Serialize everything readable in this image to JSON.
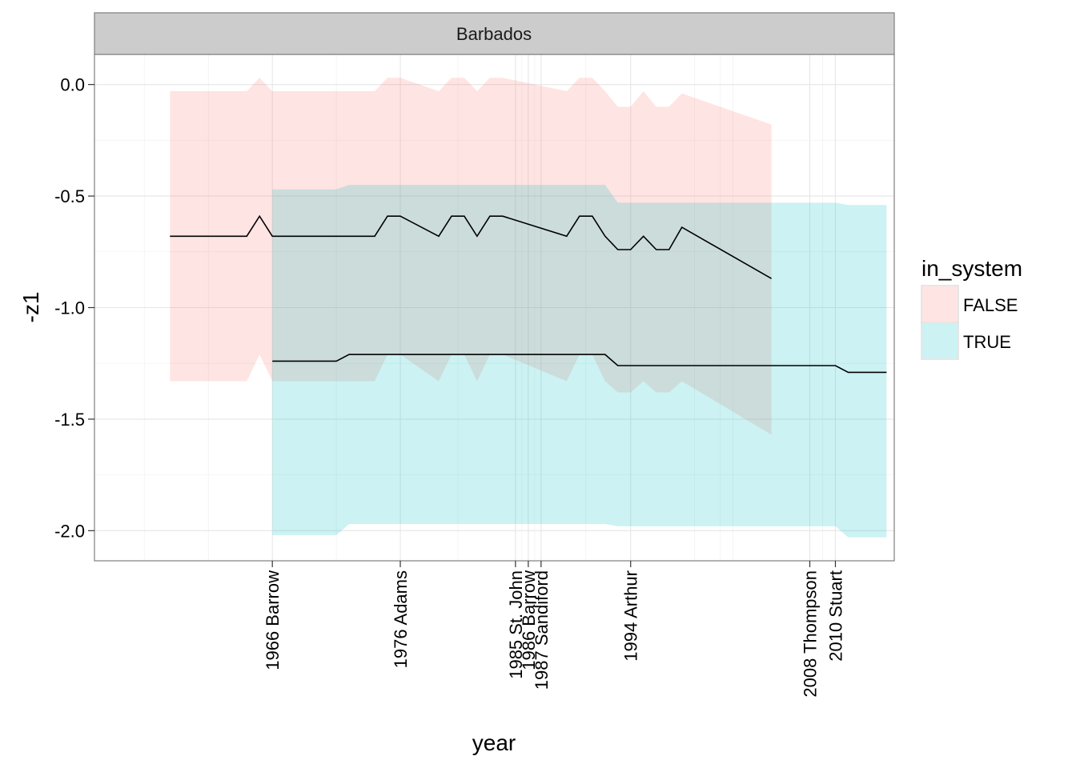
{
  "chart_data": {
    "type": "area",
    "facet": "Barbados",
    "xlabel": "year",
    "ylabel": "-z1",
    "xlim": [
      1952.1,
      2014.6
    ],
    "ylim": [
      -2.135,
      0.135
    ],
    "y_ticks": [
      0.0,
      -0.5,
      -1.0,
      -1.5,
      -2.0
    ],
    "y_tick_labels": [
      "0.0",
      "-0.5",
      "-1.0",
      "-1.5",
      "-2.0"
    ],
    "x_ticks": [
      {
        "year": 1966,
        "label": "1966 Barrow"
      },
      {
        "year": 1976,
        "label": "1976 Adams"
      },
      {
        "year": 1985,
        "label": "1985 St. John"
      },
      {
        "year": 1986,
        "label": "1986 Barrow"
      },
      {
        "year": 1987,
        "label": "1987 Sandiford"
      },
      {
        "year": 1994,
        "label": "1994 Arthur"
      },
      {
        "year": 2008,
        "label": "2008 Thompson"
      },
      {
        "year": 2010,
        "label": "2010 Stuart"
      }
    ],
    "grid": true,
    "legend": {
      "title": "in_system",
      "placement": "right",
      "entries": [
        {
          "label": "FALSE",
          "color": "#F8766D"
        },
        {
          "label": "TRUE",
          "color": "#00BFC4"
        }
      ]
    },
    "series": [
      {
        "label": "FALSE",
        "fill": "#F8766D",
        "x": [
          1958,
          1964,
          1965,
          1966,
          1968,
          1969,
          1970,
          1973,
          1974,
          1975,
          1977,
          1978,
          1979,
          1980,
          1981,
          1982,
          1983,
          1984,
          1985,
          1986,
          1987,
          1988,
          1989,
          1990,
          1991,
          1995,
          1996,
          1997,
          1998,
          1999,
          2000,
          2001,
          2002,
          2003,
          2004,
          2005
        ],
        "y": [
          -0.68,
          -0.68,
          -0.68,
          -0.68,
          -0.68,
          -0.68,
          -0.68,
          -0.68,
          -0.68,
          -0.68,
          -0.68,
          -0.68,
          -0.68,
          -0.68,
          -0.68,
          -0.68,
          -0.68,
          -0.68,
          -0.68,
          -0.68,
          -0.68,
          -0.68,
          -0.68,
          -0.68,
          -0.68,
          -0.68,
          -0.68,
          -0.68,
          -0.68,
          -0.68,
          -0.68,
          -0.68,
          -0.68,
          -0.68,
          -0.68,
          -0.68
        ],
        "ymin": [
          -1.33,
          -1.33,
          -1.33,
          -1.33,
          -1.33,
          -1.33,
          -1.33,
          -1.33,
          -1.33,
          -1.33,
          -1.33,
          -1.33,
          -1.33,
          -1.33,
          -1.33,
          -1.33,
          -1.33,
          -1.33,
          -1.33,
          -1.33,
          -1.33,
          -1.33,
          -1.33,
          -1.33,
          -1.33,
          -1.33,
          -1.33,
          -1.33,
          -1.33,
          -1.33,
          -1.33,
          -1.33,
          -1.33,
          -1.33,
          -1.33,
          -1.33
        ],
        "ymax": [
          -0.03,
          -0.03,
          -0.03,
          -0.03,
          -0.03,
          -0.03,
          -0.03,
          -0.03,
          -0.03,
          -0.03,
          -0.03,
          -0.03,
          -0.03,
          -0.03,
          -0.03,
          -0.03,
          -0.03,
          -0.03,
          -0.03,
          -0.03,
          -0.03,
          -0.03,
          -0.03,
          -0.03,
          -0.03,
          -0.03,
          -0.03,
          -0.03,
          -0.03,
          -0.03,
          -0.03,
          -0.03,
          -0.03,
          -0.03,
          -0.03,
          -0.03
        ]
      },
      {
        "label": "TRUE",
        "fill": "#00BFC4",
        "x": [
          1966,
          1971,
          1972,
          1976,
          1980,
          1984,
          1985,
          1986,
          1987,
          1992,
          1993,
          1994,
          2000,
          2006,
          2008,
          2009,
          2010,
          2011,
          2014
        ],
        "y": [
          -1.24,
          -1.24,
          -1.21,
          -1.21,
          -1.21,
          -1.21,
          -1.21,
          -1.21,
          -1.21,
          -1.21,
          -1.26,
          -1.26,
          -1.26,
          -1.26,
          -1.26,
          -1.26,
          -1.26,
          -1.29,
          -1.29
        ],
        "ymin": [
          -2.02,
          -2.02,
          -1.97,
          -1.97,
          -1.97,
          -1.97,
          -1.97,
          -1.97,
          -1.97,
          -1.97,
          -1.98,
          -1.98,
          -1.98,
          -1.98,
          -1.98,
          -1.98,
          -1.98,
          -2.03,
          -2.03
        ],
        "ymax": [
          -0.47,
          -0.47,
          -0.45,
          -0.45,
          -0.45,
          -0.45,
          -0.45,
          -0.45,
          -0.45,
          -0.45,
          -0.53,
          -0.53,
          -0.53,
          -0.53,
          -0.53,
          -0.53,
          -0.53,
          -0.54,
          -0.54
        ]
      }
    ],
    "false_detail": {
      "x": [
        1958,
        1964,
        1965,
        1966,
        1974,
        1975,
        1976,
        1979,
        1980,
        1981,
        1982,
        1983,
        1984,
        1989,
        1990,
        1991,
        1992,
        1993,
        1994,
        1995,
        1996,
        1997,
        1998,
        2005
      ],
      "y": [
        -0.68,
        -0.68,
        -0.59,
        -0.68,
        -0.68,
        -0.59,
        -0.59,
        -0.68,
        -0.59,
        -0.59,
        -0.68,
        -0.59,
        -0.59,
        -0.68,
        -0.59,
        -0.59,
        -0.68,
        -0.74,
        -0.74,
        -0.68,
        -0.74,
        -0.74,
        -0.64,
        -0.87
      ],
      "ymin": [
        -1.33,
        -1.33,
        -1.21,
        -1.33,
        -1.33,
        -1.21,
        -1.21,
        -1.33,
        -1.21,
        -1.21,
        -1.33,
        -1.21,
        -1.21,
        -1.33,
        -1.21,
        -1.21,
        -1.33,
        -1.38,
        -1.38,
        -1.33,
        -1.38,
        -1.38,
        -1.33,
        -1.57
      ],
      "ymax": [
        -0.03,
        -0.03,
        0.03,
        -0.03,
        -0.03,
        0.03,
        0.03,
        -0.03,
        0.03,
        0.03,
        -0.03,
        0.03,
        0.03,
        -0.03,
        0.03,
        0.03,
        -0.03,
        -0.1,
        -0.1,
        -0.03,
        -0.1,
        -0.1,
        -0.04,
        -0.18
      ]
    }
  }
}
